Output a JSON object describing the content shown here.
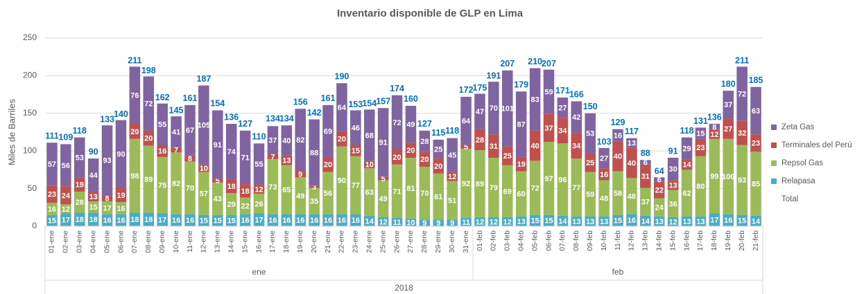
{
  "chart_data": {
    "type": "stacked_bar",
    "title": "Inventario disponible de GLP en Lima",
    "y_label": "Miles de Barriles",
    "categories": [
      "01-ene",
      "02-ene",
      "03-ene",
      "04-ene",
      "05-ene",
      "06-ene",
      "07-ene",
      "08-ene",
      "09-ene",
      "10-ene",
      "11-ene",
      "12-ene",
      "13-ene",
      "14-ene",
      "15-ene",
      "16-ene",
      "17-ene",
      "18-ene",
      "19-ene",
      "20-ene",
      "21-ene",
      "22-ene",
      "23-ene",
      "24-ene",
      "25-ene",
      "26-ene",
      "27-ene",
      "28-ene",
      "29-ene",
      "30-ene",
      "31-ene",
      "01-feb",
      "02-feb",
      "03-feb",
      "04-feb",
      "05-feb",
      "06-feb",
      "07-feb",
      "08-feb",
      "09-feb",
      "10-feb",
      "11-feb",
      "12-feb",
      "13-feb",
      "14-feb",
      "15-feb",
      "16-feb",
      "17-feb",
      "18-feb",
      "19-feb",
      "20-feb",
      "21-feb"
    ],
    "groups": [
      "ene",
      "feb"
    ],
    "year": "2018",
    "series": [
      {
        "name": "Relapasa",
        "color": "#4bacc6",
        "values": [
          15,
          17,
          18,
          18,
          16,
          16,
          18,
          18,
          17,
          16,
          16,
          15,
          15,
          15,
          16,
          17,
          16,
          16,
          16,
          16,
          16,
          16,
          16,
          14,
          12,
          11,
          10,
          9,
          9,
          9,
          11,
          12,
          12,
          12,
          13,
          15,
          15,
          14,
          13,
          13,
          13,
          15,
          16,
          14,
          13,
          12,
          13,
          13,
          17,
          16,
          15,
          14
        ]
      },
      {
        "name": "Repsol Gas",
        "color": "#9bbb59",
        "values": [
          16,
          12,
          28,
          15,
          17,
          16,
          98,
          89,
          75,
          82,
          70,
          57,
          43,
          29,
          22,
          26,
          73,
          65,
          49,
          35,
          56,
          90,
          77,
          63,
          49,
          71,
          81,
          70,
          61,
          51,
          92,
          89,
          79,
          69,
          60,
          72,
          97,
          96,
          77,
          59,
          48,
          58,
          48,
          37,
          24,
          36,
          62,
          80,
          99,
          100,
          93,
          85
        ]
      },
      {
        "name": "Terminales del Perú",
        "color": "#c0504d",
        "values": [
          23,
          24,
          19,
          13,
          8,
          19,
          20,
          20,
          16,
          7,
          8,
          10,
          5,
          18,
          18,
          12,
          7,
          13,
          9,
          3,
          20,
          20,
          15,
          10,
          5,
          20,
          20,
          20,
          20,
          12,
          5,
          28,
          31,
          25,
          19,
          40,
          37,
          34,
          34,
          25,
          16,
          40,
          40,
          31,
          22,
          13,
          14,
          23,
          12,
          27,
          32,
          23
        ]
      },
      {
        "name": "Zeta Gas",
        "color": "#8064a2",
        "values": [
          57,
          56,
          53,
          44,
          93,
          90,
          76,
          72,
          55,
          41,
          67,
          105,
          91,
          74,
          71,
          55,
          37,
          40,
          82,
          88,
          69,
          64,
          46,
          68,
          91,
          72,
          49,
          28,
          25,
          45,
          64,
          47,
          70,
          101,
          87,
          83,
          59,
          27,
          42,
          53,
          27,
          16,
          13,
          6,
          6,
          30,
          29,
          15,
          8,
          37,
          72,
          63
        ]
      }
    ],
    "total": {
      "name": "Total",
      "color": "#0070c0",
      "values": [
        111,
        109,
        118,
        90,
        133,
        140,
        211,
        198,
        162,
        145,
        161,
        187,
        154,
        136,
        127,
        110,
        134,
        134,
        156,
        142,
        161,
        190,
        153,
        154,
        157,
        174,
        160,
        127,
        115,
        118,
        172,
        175,
        191,
        207,
        179,
        210,
        207,
        171,
        166,
        150,
        103,
        129,
        117,
        88,
        64,
        91,
        118,
        131,
        136,
        180,
        211,
        185
      ]
    },
    "ylim": [
      0,
      250
    ],
    "yticks": [
      0,
      50,
      100,
      150,
      200,
      250
    ],
    "grid": true,
    "legend": "right"
  }
}
